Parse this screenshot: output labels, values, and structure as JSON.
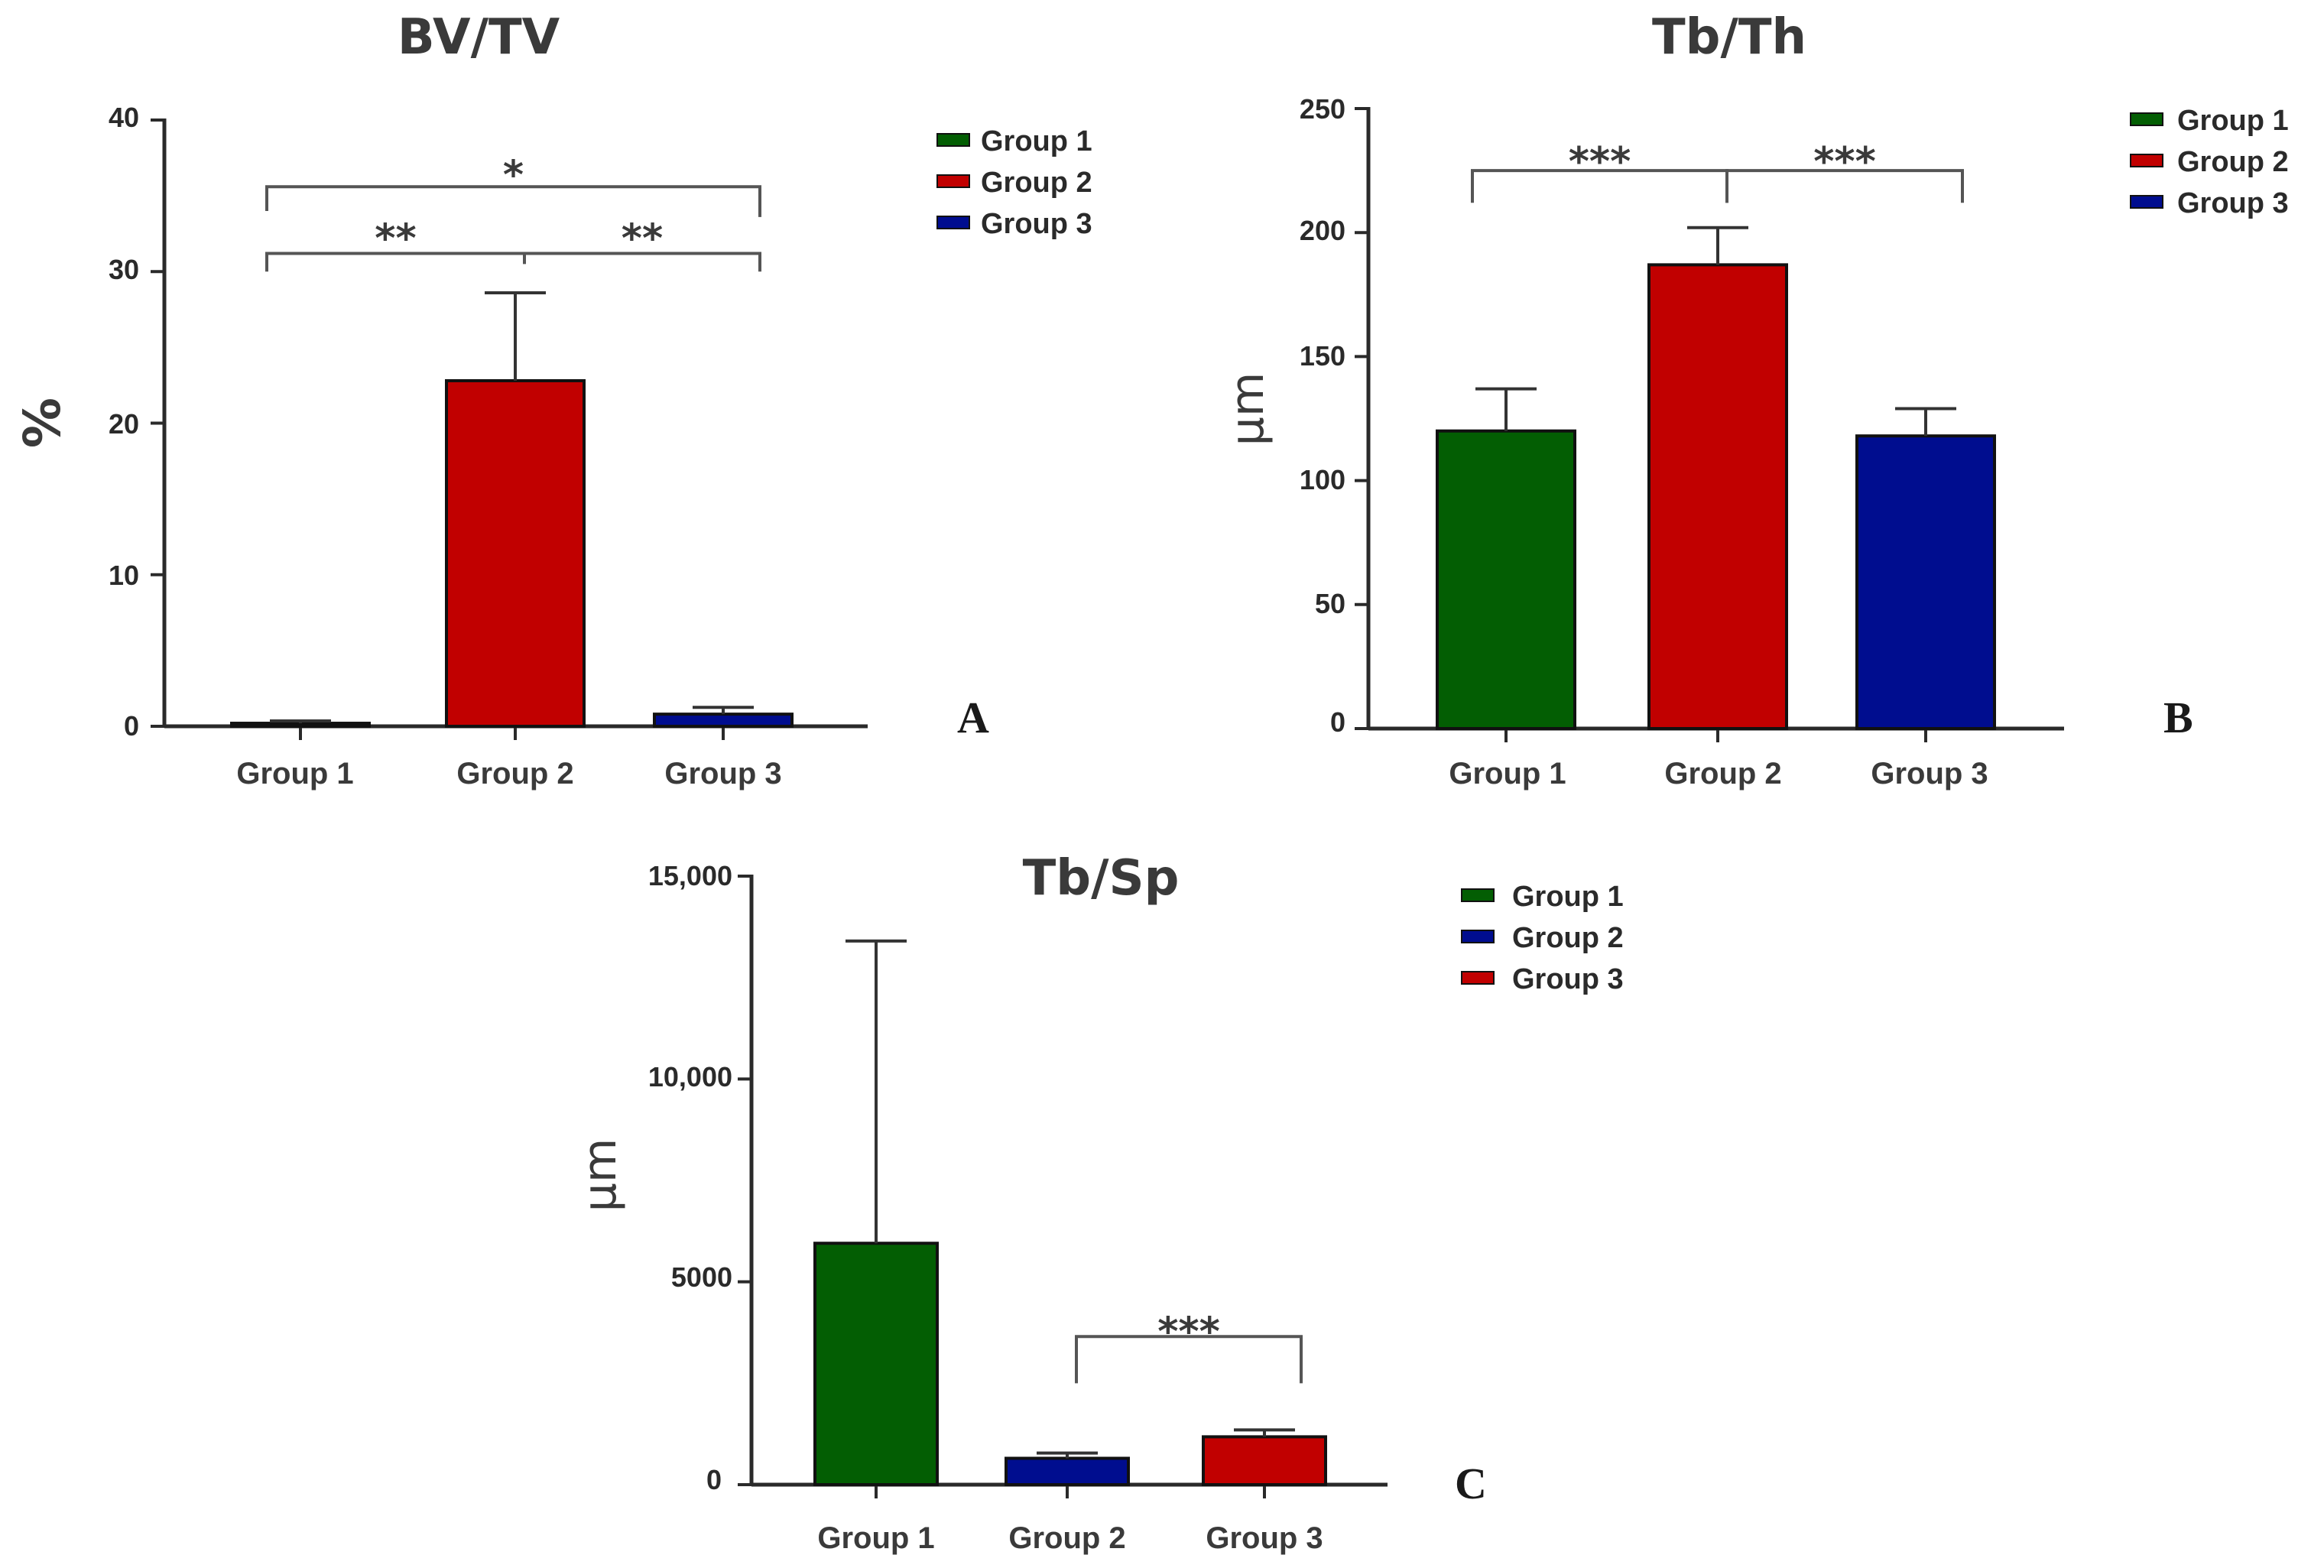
{
  "chart_data": [
    {
      "type": "bar",
      "panel": "A",
      "title": "BV/TV",
      "ylabel": "%",
      "xlabel": "",
      "categories": [
        "Group 1",
        "Group 2",
        "Group 3"
      ],
      "values": [
        0.2,
        22.8,
        0.8
      ],
      "errors": [
        0.15,
        5.8,
        0.45
      ],
      "colors": [
        "#035e03",
        "#c10000",
        "#000d8f"
      ],
      "ylim": [
        0,
        40
      ],
      "yticks": [
        0,
        10,
        20,
        30,
        40
      ],
      "ytick_labels": [
        "0",
        "10",
        "20",
        "30",
        "40"
      ],
      "legend": [
        {
          "label": "Group 1",
          "color": "#035e03"
        },
        {
          "label": "Group 2",
          "color": "#c10000"
        },
        {
          "label": "Group 3",
          "color": "#000d8f"
        }
      ],
      "legend_position": "top-right",
      "significance": [
        {
          "from": 0,
          "to": 1,
          "label": "**",
          "y": 31.2,
          "label_y": 32.4,
          "left_end_y": 30.0,
          "right_end_y": 30.7
        },
        {
          "from": 1,
          "to": 2,
          "label": "**",
          "y": 31.2,
          "label_y": 32.4,
          "left_end_y": 30.5,
          "right_end_y": 30.0
        },
        {
          "from": 0,
          "to": 2,
          "label": "*",
          "y": 35.6,
          "label_y": 36.6,
          "left_end_y": 34.0,
          "right_end_y": 33.6
        }
      ]
    },
    {
      "type": "bar",
      "panel": "B",
      "title": "Tb/Th",
      "ylabel": "μm",
      "xlabel": "",
      "categories": [
        "Group 1",
        "Group 2",
        "Group 3"
      ],
      "values": [
        120,
        187,
        118
      ],
      "errors": [
        17,
        15,
        11
      ],
      "colors": [
        "#035e03",
        "#c10000",
        "#000d8f"
      ],
      "ylim": [
        0,
        250
      ],
      "yticks": [
        0,
        50,
        100,
        150,
        200,
        250
      ],
      "ytick_labels": [
        "0",
        "50",
        "100",
        "150",
        "200",
        "250"
      ],
      "legend": [
        {
          "label": "Group 1",
          "color": "#035e03"
        },
        {
          "label": "Group 2",
          "color": "#c10000"
        },
        {
          "label": "Group 3",
          "color": "#000d8f"
        }
      ],
      "legend_position": "top-right",
      "significance": [
        {
          "from": 0,
          "to": 1,
          "label": "***",
          "y": 225,
          "label_y": 230,
          "left_end_y": 212,
          "right_end_y": 212
        },
        {
          "from": 1,
          "to": 2,
          "label": "***",
          "y": 225,
          "label_y": 230,
          "left_end_y": 212,
          "right_end_y": 212
        }
      ]
    },
    {
      "type": "bar",
      "panel": "C",
      "title": "Tb/Sp",
      "ylabel": "μm",
      "xlabel": "",
      "categories": [
        "Group 1",
        "Group 2",
        "Group 3"
      ],
      "values": [
        5950,
        650,
        1180
      ],
      "errors": [
        7450,
        130,
        170
      ],
      "colors": [
        "#035e03",
        "#000d8f",
        "#c10000"
      ],
      "ylim": [
        0,
        15000
      ],
      "yticks": [
        0,
        5000,
        10000,
        15000
      ],
      "ytick_labels": [
        "0",
        "5000",
        "10,000",
        "15,000"
      ],
      "legend": [
        {
          "label": "Group 1",
          "color": "#035e03"
        },
        {
          "label": "Group 2",
          "color": "#000d8f"
        },
        {
          "label": "Group 3",
          "color": "#c10000"
        }
      ],
      "legend_position": "top-right",
      "significance": [
        {
          "from": 1,
          "to": 2,
          "label": "***",
          "y": 3650,
          "label_y": 3850,
          "left_end_y": 2500,
          "right_end_y": 2500
        }
      ]
    }
  ]
}
